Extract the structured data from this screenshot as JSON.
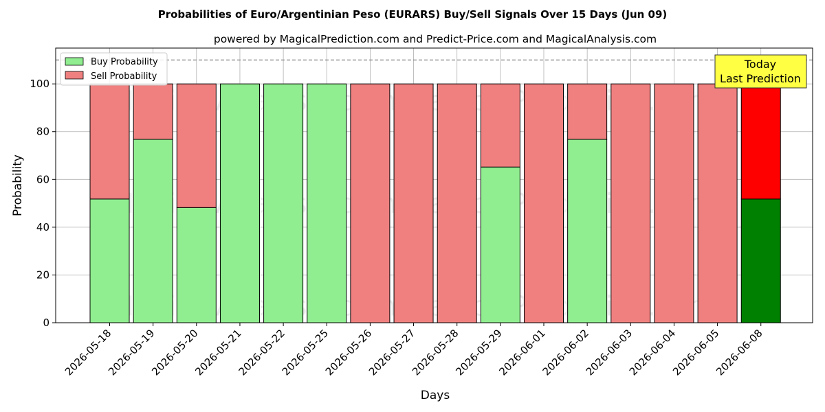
{
  "chart_data": {
    "type": "bar",
    "stacked": true,
    "title": "Probabilities of Euro/Argentinian Peso (EURARS) Buy/Sell Signals Over 15 Days (Jun 09)",
    "subtitle": "powered by MagicalPrediction.com and Predict-Price.com and MagicalAnalysis.com",
    "xlabel": "Days",
    "ylabel": "Probability",
    "ylim": [
      0,
      115
    ],
    "yticks": [
      0,
      20,
      40,
      60,
      80,
      100
    ],
    "grid": true,
    "legend_position": "top-left",
    "reference_line": 110,
    "categories": [
      "2026-05-18",
      "2026-05-19",
      "2026-05-20",
      "2026-05-21",
      "2026-05-22",
      "2026-05-25",
      "2026-05-26",
      "2026-05-27",
      "2026-05-28",
      "2026-05-29",
      "2026-06-01",
      "2026-06-02",
      "2026-06-03",
      "2026-06-04",
      "2026-06-05",
      "2026-06-08"
    ],
    "series": [
      {
        "name": "Buy Probability",
        "color": "#90ee90",
        "highlight_color": "#008000",
        "values": [
          51.8,
          76.8,
          48.2,
          100,
          100,
          100,
          0,
          0,
          0,
          65.2,
          0,
          76.8,
          0,
          0,
          0,
          51.8
        ]
      },
      {
        "name": "Sell Probability",
        "color": "#f08080",
        "highlight_color": "#ff0000",
        "values": [
          48.2,
          23.2,
          51.8,
          0,
          0,
          0,
          100,
          100,
          100,
          34.8,
          100,
          23.2,
          100,
          100,
          100,
          48.2
        ]
      }
    ],
    "highlight_index": 15,
    "annotation": {
      "line1": "Today",
      "line2": "Last Prediction",
      "background": "#ffff44"
    },
    "watermark": "MagicalAnalysis.com    MagicalPrediction.com"
  }
}
